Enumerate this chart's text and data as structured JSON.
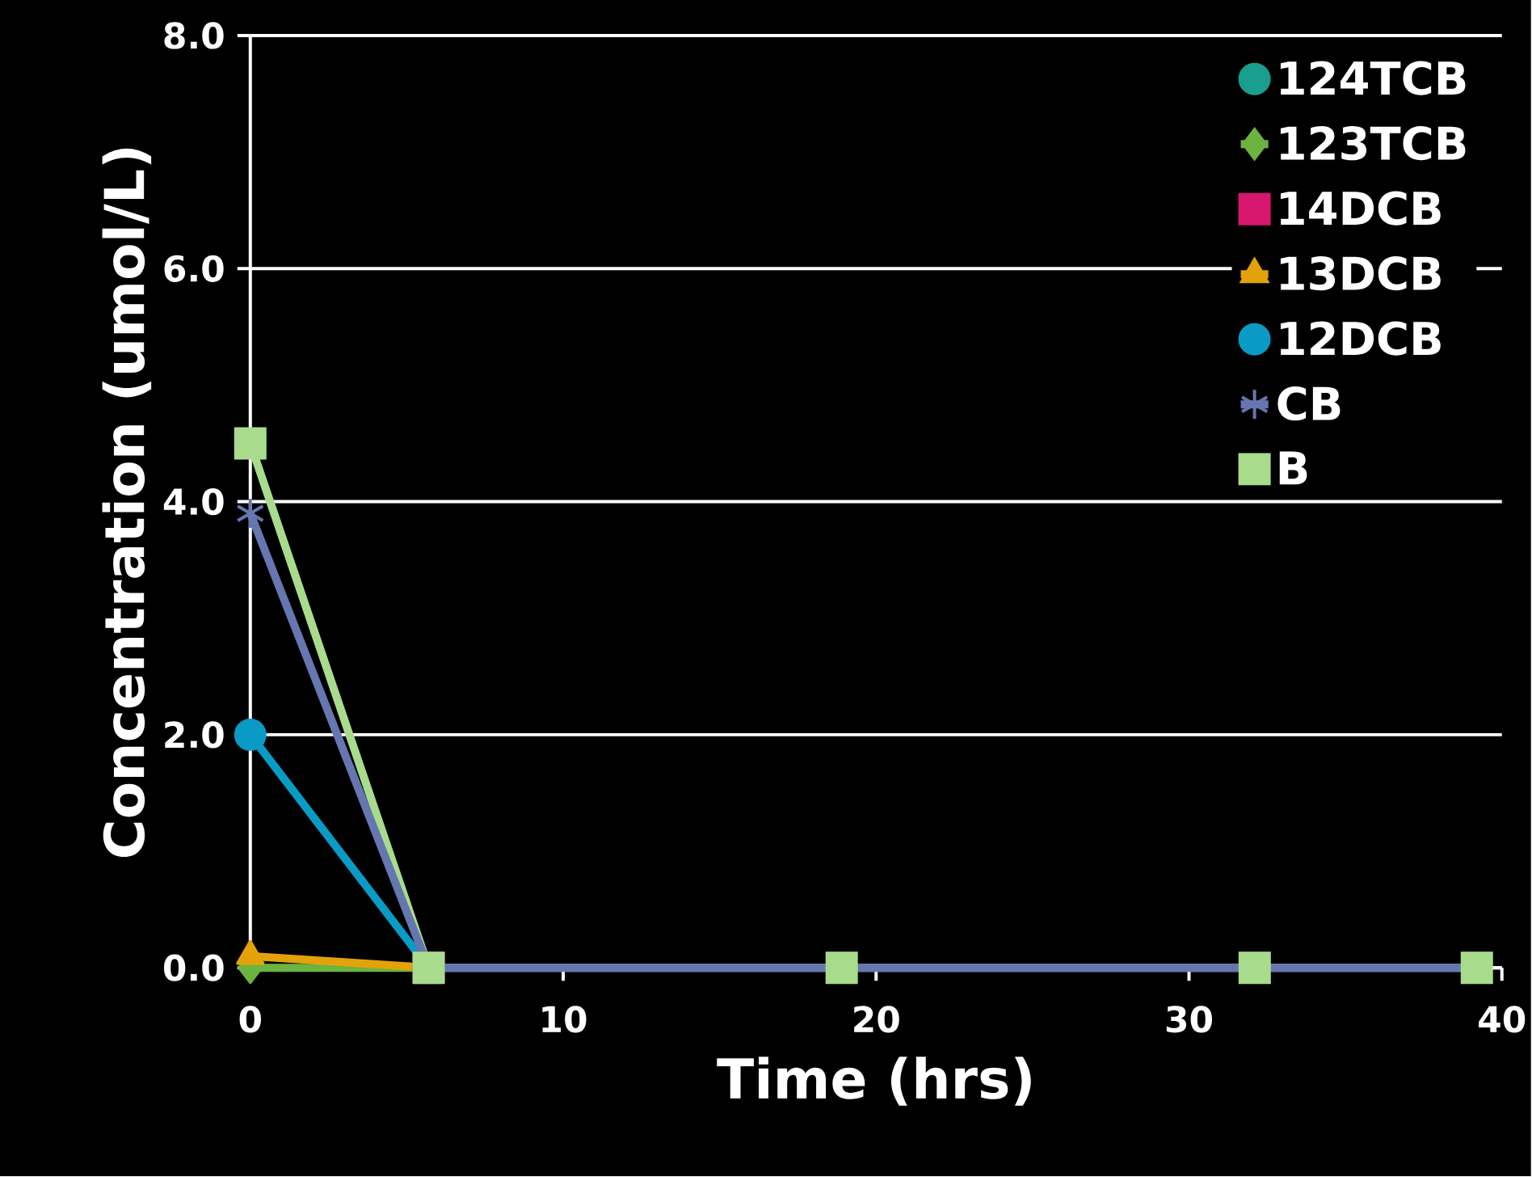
{
  "chart_data": {
    "type": "line",
    "xlabel": "Time (hrs)",
    "ylabel": "Concentration (umol/L)",
    "x": [
      0,
      5.7,
      18.9,
      32.1,
      39.2
    ],
    "series": [
      {
        "name": "124TCB",
        "color": "#1a9e8f",
        "marker": "circle",
        "values": [
          null,
          null,
          null,
          null,
          null
        ]
      },
      {
        "name": "123TCB",
        "color": "#6cb33f",
        "marker": "diamond",
        "values": [
          0.0,
          0.0,
          null,
          null,
          null
        ]
      },
      {
        "name": "14DCB",
        "color": "#d6166f",
        "marker": "square",
        "values": [
          null,
          0.0,
          null,
          null,
          null
        ]
      },
      {
        "name": "13DCB",
        "color": "#e3a20a",
        "marker": "triangle",
        "values": [
          0.1,
          0.0,
          null,
          null,
          null
        ]
      },
      {
        "name": "12DCB",
        "color": "#0a9ac6",
        "marker": "circle",
        "values": [
          2.0,
          0.0,
          null,
          null,
          null
        ]
      },
      {
        "name": "CB",
        "color": "#6676b0",
        "marker": "cross",
        "values": [
          3.9,
          0.0,
          0.0,
          0.0,
          0.0
        ]
      },
      {
        "name": "B",
        "color": "#a8dc8c",
        "marker": "square",
        "values": [
          4.5,
          0.0,
          0.0,
          0.0,
          0.0
        ]
      }
    ],
    "xlim": [
      0,
      40
    ],
    "xticks": [
      0,
      10,
      20,
      30,
      40
    ],
    "ylim": [
      0,
      8
    ],
    "yticks": [
      {
        "value": 0,
        "label": "0.0"
      },
      {
        "value": 2,
        "label": "2.0"
      },
      {
        "value": 4,
        "label": "4.0"
      },
      {
        "value": 6,
        "label": "6.0"
      },
      {
        "value": 8,
        "label": "8.0"
      }
    ],
    "grid": "y",
    "legend": "top right"
  }
}
